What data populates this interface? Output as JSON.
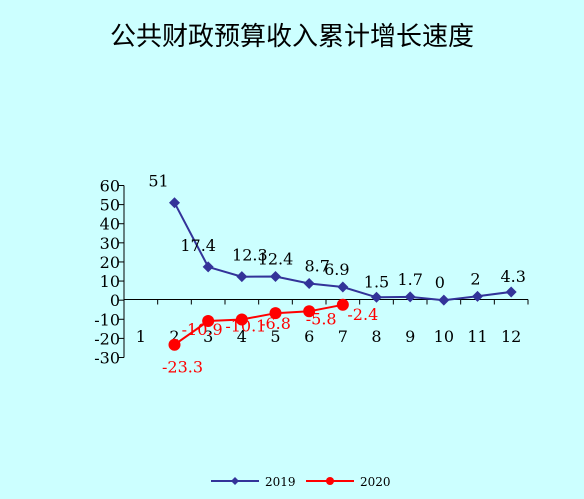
{
  "title": "公共财政预算收入累计增长速度",
  "colors": {
    "background": "#ccffff",
    "series_2019": "#333399",
    "series_2020": "#ff0000",
    "axis": "#000000"
  },
  "chart_data": {
    "type": "line",
    "title": "公共财政预算收入累计增长速度",
    "categories": [
      "1",
      "2",
      "3",
      "4",
      "5",
      "6",
      "7",
      "8",
      "9",
      "10",
      "11",
      "12"
    ],
    "y_ticks": [
      "60",
      "50",
      "40",
      "30",
      "20",
      "10",
      "0",
      "-10",
      "-20",
      "-30"
    ],
    "ylim": [
      -30,
      60
    ],
    "grid": false,
    "legend_position": "bottom",
    "series": [
      {
        "name": "2019",
        "marker": "diamond",
        "color": "#333399",
        "values": [
          null,
          51,
          17.4,
          12.3,
          12.4,
          8.7,
          6.9,
          1.5,
          1.7,
          0,
          2,
          4.3
        ],
        "labels": [
          null,
          "51",
          "17.4",
          "12.3",
          "12.4",
          "8.7",
          "6.9",
          "1.5",
          "1.7",
          "0",
          "2",
          "4.3"
        ]
      },
      {
        "name": "2020",
        "marker": "circle",
        "color": "#ff0000",
        "values": [
          null,
          -23.3,
          -10.9,
          -10.1,
          -6.8,
          -5.8,
          -2.4,
          null,
          null,
          null,
          null,
          null
        ],
        "labels": [
          null,
          "-23.3",
          "-10.9",
          "-10.1",
          "-6.8",
          "-5.8",
          "-2.4",
          null,
          null,
          null,
          null,
          null
        ]
      }
    ]
  }
}
